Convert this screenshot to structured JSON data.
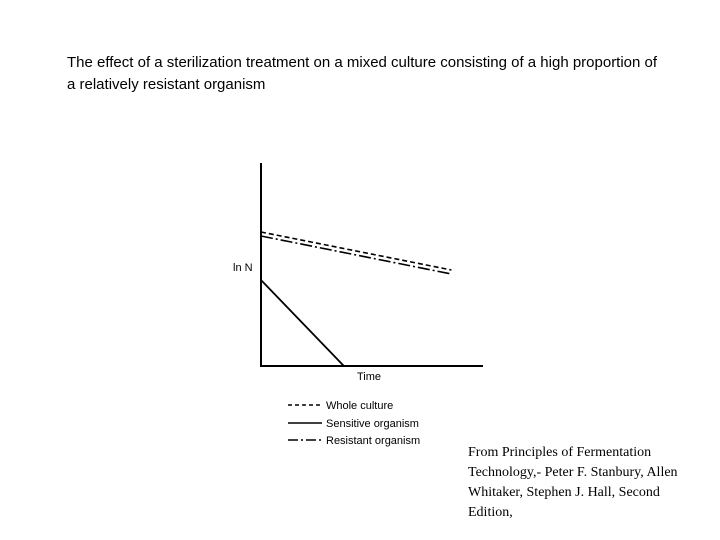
{
  "slide": {
    "title": "The effect of a sterilization treatment on a mixed culture consisting of a high proportion of a relatively resistant organism",
    "citation": "From Principles of Fermentation Technology,- Peter F. Stanbury, Allen Whitaker, Stephen J. Hall, Second Edition,"
  },
  "chart_data": {
    "type": "line",
    "title": "",
    "xlabel": "Time",
    "ylabel": "ln N",
    "xlim": [
      0,
      10
    ],
    "ylim": [
      0,
      10
    ],
    "grid": false,
    "legend_position": "bottom",
    "series": [
      {
        "name": "Whole culture",
        "style": "dashed",
        "x": [
          0,
          8.5
        ],
        "y": [
          6.7,
          4.8
        ]
      },
      {
        "name": "Sensitive organism",
        "style": "solid",
        "x": [
          0,
          3.7
        ],
        "y": [
          4.3,
          0
        ]
      },
      {
        "name": "Resistant organism",
        "style": "dash-dot",
        "x": [
          0,
          8.5
        ],
        "y": [
          6.5,
          4.6
        ]
      }
    ],
    "colors": {
      "line": "#000000"
    }
  }
}
